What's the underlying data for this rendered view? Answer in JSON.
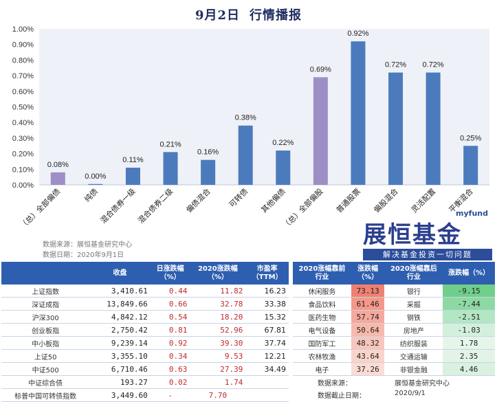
{
  "header": {
    "title_date": "9月2日",
    "title_text": "行情播报"
  },
  "chart_data": {
    "type": "bar",
    "categories": [
      "（总）全部偏债",
      "纯债",
      "混合债券一级",
      "混合债券二级",
      "偏债混合",
      "可转债",
      "其他偏债",
      "（总）全部偏股",
      "普通股票",
      "偏股混合",
      "灵活配置",
      "平衡混合"
    ],
    "values": [
      0.08,
      0.0,
      0.11,
      0.21,
      0.16,
      0.38,
      0.22,
      0.69,
      0.92,
      0.72,
      0.72,
      0.25
    ],
    "value_labels": [
      "0.08%",
      "0.00%",
      "0.11%",
      "0.21%",
      "0.16%",
      "0.38%",
      "0.22%",
      "0.69%",
      "0.92%",
      "0.72%",
      "0.72%",
      "0.25%"
    ],
    "ylim": [
      0,
      1.0
    ],
    "yticks": [
      "0.00%",
      "0.10%",
      "0.20%",
      "0.30%",
      "0.40%",
      "0.50%",
      "0.60%",
      "0.70%",
      "0.80%",
      "0.90%",
      "1.00%"
    ],
    "bar_colors": [
      "#9d8ec6",
      "#4c7bbd",
      "#4c7bbd",
      "#4c7bbd",
      "#4c7bbd",
      "#4c7bbd",
      "#4c7bbd",
      "#9d8ec6",
      "#4c7bbd",
      "#4c7bbd",
      "#4c7bbd",
      "#4c7bbd"
    ],
    "plot_background": "#eef1f7",
    "grid": false
  },
  "source": {
    "line1": "数据来源：展恒基金研究中心",
    "line2": "数据日期：2020年9月1日"
  },
  "logo": {
    "brand": "展恒基金",
    "latin": "myfund",
    "slogan": "解决基金投资一切问题"
  },
  "index_table": {
    "headers": [
      "",
      "收盘",
      "日涨跌幅\n（%）",
      "2020涨跌幅\n（%）",
      "市盈率\n（TTM）"
    ],
    "rows": [
      [
        "上证指数",
        "3,410.61",
        "0.44",
        "11.82",
        "16.23"
      ],
      [
        "深证成指",
        "13,849.66",
        "0.66",
        "32.78",
        "33.38"
      ],
      [
        "沪深300",
        "4,842.12",
        "0.54",
        "18.20",
        "15.32"
      ],
      [
        "创业板指",
        "2,750.42",
        "0.81",
        "52.96",
        "67.81"
      ],
      [
        "中小板指",
        "9,239.14",
        "0.92",
        "39.30",
        "37.74"
      ],
      [
        "上证50",
        "3,355.10",
        "0.34",
        "9.53",
        "12.21"
      ],
      [
        "中证500",
        "6,710.46",
        "0.63",
        "27.39",
        "34.49"
      ],
      [
        "中证综合债",
        "193.27",
        "0.02",
        "1.74",
        ""
      ],
      [
        "标普中国可转债指数",
        "3,449.60",
        "-",
        "7.70",
        ""
      ]
    ]
  },
  "industry_table": {
    "headers": [
      "2020涨幅靠前\n行业",
      "涨跌幅\n（%）",
      "2020涨幅靠后\n行业",
      "涨跌幅（%）"
    ],
    "rows": [
      [
        "休闲服务",
        "73.13",
        "银行",
        "-9.15"
      ],
      [
        "食品饮料",
        "61.46",
        "采掘",
        "-7.44"
      ],
      [
        "医药生物",
        "57.74",
        "钢铁",
        "-2.51"
      ],
      [
        "电气设备",
        "50.64",
        "房地产",
        "-1.03"
      ],
      [
        "国防军工",
        "48.32",
        "纺织服装",
        "1.78"
      ],
      [
        "农林牧渔",
        "43.64",
        "交通运输",
        "2.35"
      ],
      [
        "电子",
        "37.26",
        "非银金融",
        "4.46"
      ]
    ],
    "top_colors": [
      "#f08070",
      "#f3998b",
      "#f5a89b",
      "#f7b9ad",
      "#f9c6bb",
      "#fad4cb",
      "#fbdcd4"
    ],
    "bottom_colors": [
      "#6fcf8a",
      "#8ed9a3",
      "#b3e6c2",
      "#d3f0dc",
      "#e6f5ea",
      "#e3f4e7",
      "#d9f1df"
    ],
    "footer": {
      "src_label": "数据来源：",
      "src_value": "展恒基金研究中心",
      "date_label": "数据截止日期：",
      "date_value": "2020/9/1"
    }
  }
}
